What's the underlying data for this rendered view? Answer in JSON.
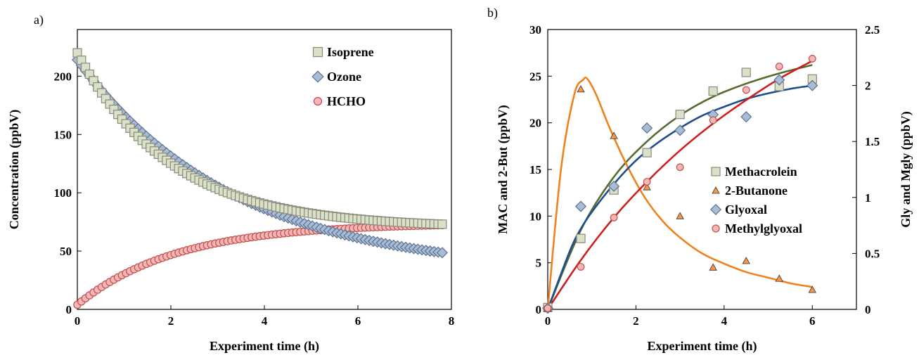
{
  "colors": {
    "isoprene_fill": "#d9e1c8",
    "isoprene_stroke": "#8a8a7a",
    "ozone_fill": "#a9bcd6",
    "ozone_stroke": "#5d7190",
    "hcho_fill": "#f4b6b6",
    "hcho_stroke": "#c0504d",
    "methacrolein_fill": "#d9e1c8",
    "methacrolein_stroke": "#8a8a7a",
    "methacrolein_line": "#556b2f",
    "butanone_fill": "#f79646",
    "butanone_stroke": "#333333",
    "butanone_line": "#f0821e",
    "glyoxal_fill": "#a9bcd6",
    "glyoxal_stroke": "#5d7190",
    "glyoxal_line": "#1f4e8c",
    "mgly_fill": "#f4b6b6",
    "mgly_stroke": "#c0504d",
    "mgly_line": "#cc1f1f"
  },
  "chart_data": [
    {
      "panel_label": "a)",
      "type": "scatter",
      "xlabel": "Experiment time (h)",
      "ylabel": "Concentration (ppbV)",
      "xlim": [
        0,
        8
      ],
      "ylim": [
        0,
        240
      ],
      "xticks": [
        "0",
        "2",
        "4",
        "6",
        "8"
      ],
      "yticks": [
        "0",
        "50",
        "100",
        "150",
        "200"
      ],
      "legend_position": "top-right",
      "series": [
        {
          "name": "Isoprene",
          "marker": "square",
          "model": {
            "a": 150,
            "k": 0.5,
            "c": 70
          }
        },
        {
          "name": "Ozone",
          "marker": "diamond",
          "model": {
            "a": 183,
            "k": 0.3,
            "c": 31
          }
        },
        {
          "name": "HCHO",
          "marker": "circle",
          "model": {
            "a": -70,
            "k": 0.47,
            "c": 74
          }
        }
      ]
    },
    {
      "panel_label": "b)",
      "type": "scatter",
      "xlabel": "Experiment time (h)",
      "ylabel": "MAC and 2-But (ppbV)",
      "ylabel_right": "Gly and Mgly (ppbV)",
      "xlim": [
        0,
        7
      ],
      "ylim": [
        0,
        30
      ],
      "ylim_right": [
        0,
        2.5
      ],
      "xticks": [
        "0",
        "2",
        "4",
        "6"
      ],
      "yticks": [
        "0",
        "5",
        "10",
        "15",
        "20",
        "25",
        "30"
      ],
      "yticks_right": [
        "0",
        "0.5",
        "1",
        "1.5",
        "2",
        "2.5"
      ],
      "legend_position": "center-right",
      "series": [
        {
          "name": "Methacrolein",
          "marker": "square",
          "axis": "left",
          "x": [
            0,
            0.75,
            1.5,
            2.25,
            3,
            3.75,
            4.5,
            5.25,
            6
          ],
          "y": [
            0.2,
            7.6,
            12.8,
            16.8,
            20.9,
            23.4,
            25.4,
            23.9,
            24.7
          ],
          "fit_x": [
            0,
            0.75,
            1.5,
            2.25,
            3,
            3.75,
            4.5,
            5.25,
            6
          ],
          "fit_y": [
            0,
            8.5,
            14.2,
            18.0,
            20.8,
            22.8,
            24.2,
            25.3,
            26.2
          ]
        },
        {
          "name": "2-Butanone",
          "marker": "triangle",
          "axis": "left",
          "x": [
            0,
            0.75,
            1.5,
            2.25,
            3,
            3.75,
            4.5,
            5.25,
            6
          ],
          "y": [
            0.1,
            23.6,
            18.6,
            13.1,
            10.0,
            4.5,
            5.2,
            3.3,
            2.1
          ],
          "fit_x": [
            0,
            0.3,
            0.6,
            0.8,
            0.9,
            1.1,
            1.4,
            1.8,
            2.2,
            2.6,
            3.0,
            3.5,
            4.0,
            4.5,
            5.0,
            5.5,
            6.0
          ],
          "fit_y": [
            0,
            15.0,
            23.0,
            24.6,
            24.7,
            23.0,
            19.5,
            15.4,
            12.0,
            9.5,
            7.7,
            6.0,
            4.9,
            4.0,
            3.4,
            2.8,
            2.4
          ]
        },
        {
          "name": "Glyoxal",
          "marker": "diamond",
          "axis": "right",
          "x": [
            0,
            0.75,
            1.5,
            2.25,
            3,
            3.75,
            4.5,
            5.25,
            6
          ],
          "y": [
            0.01,
            0.92,
            1.1,
            1.62,
            1.6,
            1.74,
            1.72,
            2.05,
            2.0
          ],
          "fit_x": [
            0,
            0.5,
            0.75,
            1.0,
            1.5,
            2.0,
            2.5,
            3.0,
            3.5,
            4.0,
            4.5,
            5.0,
            5.5,
            6.0
          ],
          "fit_y": [
            0,
            0.52,
            0.72,
            0.87,
            1.12,
            1.33,
            1.49,
            1.62,
            1.73,
            1.81,
            1.88,
            1.93,
            1.97,
            2.0
          ]
        },
        {
          "name": "Methylglyoxal",
          "marker": "circle",
          "axis": "right",
          "x": [
            0,
            0.75,
            1.5,
            2.25,
            3,
            3.75,
            4.5,
            5.25,
            6
          ],
          "y": [
            0.01,
            0.38,
            0.82,
            1.14,
            1.27,
            1.69,
            1.96,
            2.17,
            2.24
          ],
          "fit_x": [
            0,
            0.75,
            1.5,
            2.25,
            3,
            3.75,
            4.5,
            5.25,
            6
          ],
          "fit_y": [
            0,
            0.44,
            0.82,
            1.14,
            1.42,
            1.66,
            1.87,
            2.06,
            2.22
          ]
        }
      ]
    }
  ]
}
